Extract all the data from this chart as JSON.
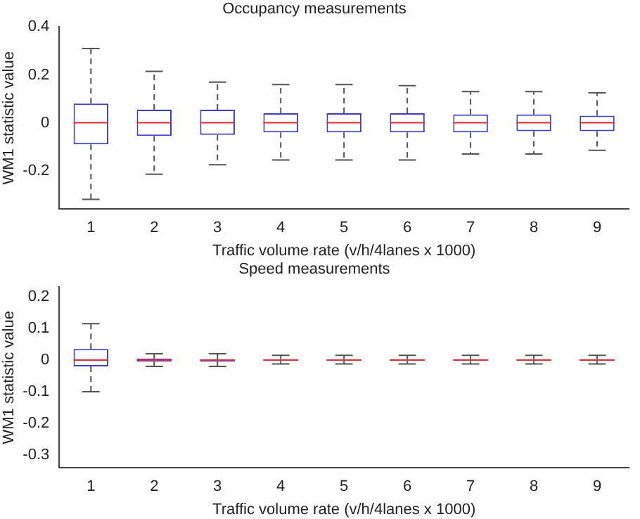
{
  "chart_data": [
    {
      "type": "box",
      "title": "Occupancy measurements",
      "xlabel": "Traffic volume rate (v/h/4lanes x 1000)",
      "ylabel": "WM1 statistic value",
      "categories": [
        "1",
        "2",
        "3",
        "4",
        "5",
        "6",
        "7",
        "8",
        "9"
      ],
      "color": "#3b3bd6",
      "ylim": [
        -0.36,
        0.4
      ],
      "yticks": [
        -0.2,
        0,
        0.2,
        0.4
      ],
      "grid": false,
      "legend": false,
      "boxes": [
        {
          "low": -0.32,
          "q1": -0.09,
          "median": 0,
          "q3": 0.08,
          "high": 0.31
        },
        {
          "low": -0.215,
          "q1": -0.055,
          "median": 0,
          "q3": 0.055,
          "high": 0.215
        },
        {
          "low": -0.175,
          "q1": -0.05,
          "median": 0,
          "q3": 0.055,
          "high": 0.17
        },
        {
          "low": -0.155,
          "q1": -0.04,
          "median": 0,
          "q3": 0.04,
          "high": 0.16
        },
        {
          "low": -0.155,
          "q1": -0.04,
          "median": 0,
          "q3": 0.04,
          "high": 0.16
        },
        {
          "low": -0.155,
          "q1": -0.04,
          "median": 0,
          "q3": 0.04,
          "high": 0.155
        },
        {
          "low": -0.13,
          "q1": -0.04,
          "median": 0,
          "q3": 0.035,
          "high": 0.13
        },
        {
          "low": -0.13,
          "q1": -0.035,
          "median": 0,
          "q3": 0.035,
          "high": 0.13
        },
        {
          "low": -0.115,
          "q1": -0.035,
          "median": 0,
          "q3": 0.03,
          "high": 0.125
        }
      ]
    },
    {
      "type": "box",
      "title": "Speed measurements",
      "xlabel": "Traffic volume rate (v/h/4lanes x 1000)",
      "ylabel": "WM1 statistic value",
      "categories": [
        "1",
        "2",
        "3",
        "4",
        "5",
        "6",
        "7",
        "8",
        "9"
      ],
      "color": "#3b3bd6",
      "ylim": [
        -0.34,
        0.23
      ],
      "yticks": [
        -0.3,
        -0.2,
        -0.1,
        0,
        0.1,
        0.2
      ],
      "grid": false,
      "legend": false,
      "boxes": [
        {
          "low": -0.1,
          "q1": -0.02,
          "median": 0,
          "q3": 0.035,
          "high": 0.115
        },
        {
          "low": -0.02,
          "q1": -0.005,
          "median": 0,
          "q3": 0.005,
          "high": 0.02
        },
        {
          "low": -0.02,
          "q1": -0.005,
          "median": 0,
          "q3": 0.003,
          "high": 0.02
        },
        {
          "low": -0.012,
          "q1": -0.003,
          "median": 0,
          "q3": 0.003,
          "high": 0.015
        },
        {
          "low": -0.012,
          "q1": -0.003,
          "median": 0,
          "q3": 0.003,
          "high": 0.015
        },
        {
          "low": -0.012,
          "q1": -0.003,
          "median": 0,
          "q3": 0.003,
          "high": 0.015
        },
        {
          "low": -0.012,
          "q1": -0.003,
          "median": 0,
          "q3": 0.003,
          "high": 0.015
        },
        {
          "low": -0.012,
          "q1": -0.003,
          "median": 0,
          "q3": 0.003,
          "high": 0.015
        },
        {
          "low": -0.012,
          "q1": -0.003,
          "median": 0,
          "q3": 0.003,
          "high": 0.015
        }
      ]
    }
  ]
}
